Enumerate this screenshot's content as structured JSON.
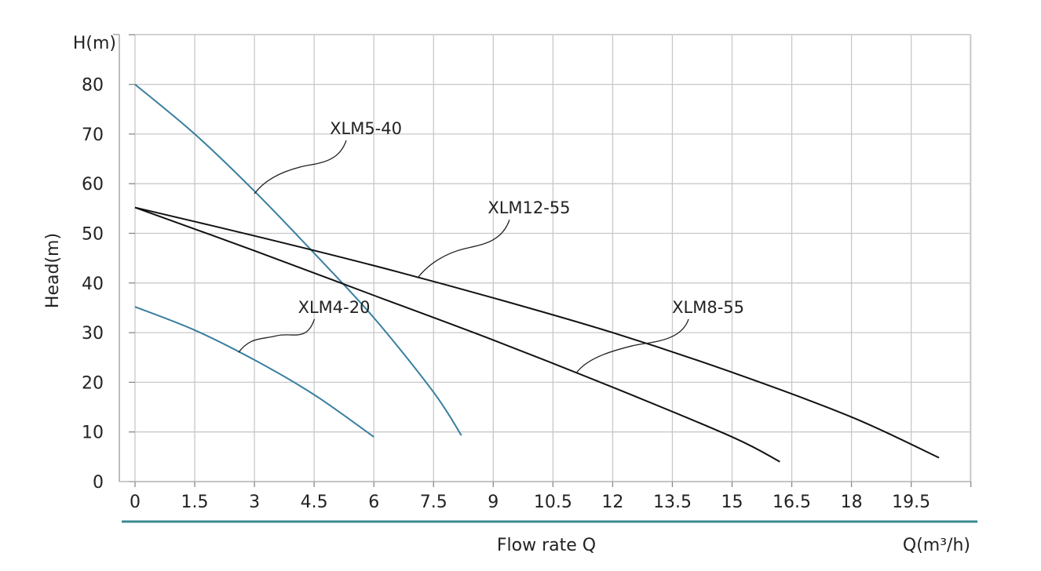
{
  "chart_data": {
    "type": "line",
    "title": "",
    "xlabel": "Flow rate Q",
    "x_unit_label": "Q(m³/h)",
    "ylabel": "Head(m)",
    "y_unit_label": "H(m)",
    "xlim": [
      0,
      21
    ],
    "ylim": [
      0,
      90
    ],
    "x_ticks": [
      "0",
      "1.5",
      "3",
      "4.5",
      "6",
      "7.5",
      "9",
      "10.5",
      "12",
      "13.5",
      "15",
      "16.5",
      "18",
      "19.5"
    ],
    "y_ticks": [
      "0",
      "10",
      "20",
      "30",
      "40",
      "50",
      "60",
      "70",
      "80"
    ],
    "grid": true,
    "colors": {
      "blue_series": "#3a7fa0",
      "black_series": "#111111",
      "grid": "#c8c8c8",
      "axis_band": "#3a8a8f"
    },
    "series": [
      {
        "name": "XLM5-40",
        "color": "#3a7fa0",
        "x": [
          0,
          1.5,
          3,
          4.5,
          6,
          7.5,
          8.2
        ],
        "y": [
          80,
          70,
          58.5,
          46,
          33,
          18,
          9.3
        ],
        "annotation": {
          "label_at": [
            5.8,
            70
          ],
          "point": [
            3,
            58
          ]
        }
      },
      {
        "name": "XLM4-20",
        "color": "#3a7fa0",
        "x": [
          0,
          1.5,
          3,
          4.5,
          6
        ],
        "y": [
          35.2,
          30.5,
          24.5,
          17.5,
          9
        ],
        "annotation": {
          "label_at": [
            5,
            34
          ],
          "point": [
            2.6,
            26
          ]
        }
      },
      {
        "name": "XLM12-55",
        "color": "#111111",
        "x": [
          0,
          3,
          6,
          9,
          12,
          15,
          18,
          20.2
        ],
        "y": [
          55.2,
          49.5,
          43.5,
          37,
          30,
          22,
          13,
          4.8
        ],
        "annotation": {
          "label_at": [
            9.9,
            54
          ],
          "point": [
            7.1,
            41
          ]
        }
      },
      {
        "name": "XLM8-55",
        "color": "#111111",
        "x": [
          0,
          3,
          6,
          9,
          12,
          15,
          16.2
        ],
        "y": [
          55.2,
          46.5,
          37.5,
          28.5,
          19,
          9,
          4
        ],
        "annotation": {
          "label_at": [
            14.4,
            34
          ],
          "point": [
            11.1,
            22
          ]
        }
      }
    ]
  }
}
